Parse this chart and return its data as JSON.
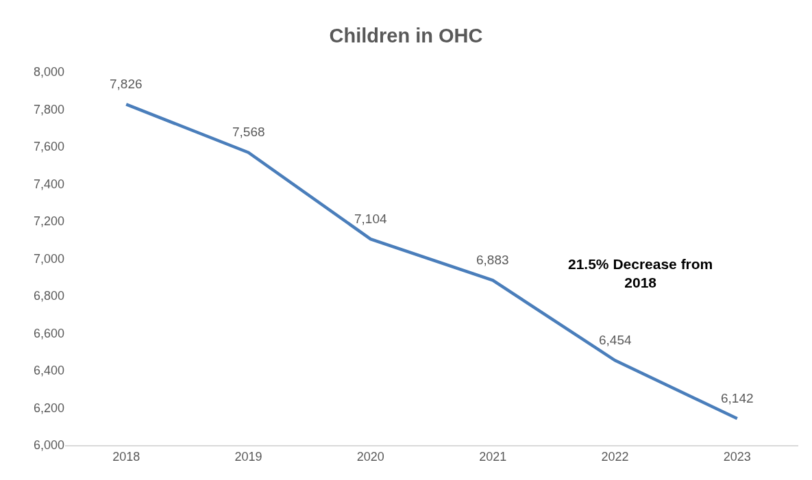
{
  "chart_data": {
    "type": "line",
    "title": "Children in OHC",
    "categories": [
      "2018",
      "2019",
      "2020",
      "2021",
      "2022",
      "2023"
    ],
    "series": [
      {
        "color": "#4a7ebb",
        "values": [
          7826,
          7568,
          7104,
          6883,
          6454,
          6142
        ],
        "value_labels": [
          "7,826",
          "7,568",
          "7,104",
          "6,883",
          "6,454",
          "6,142"
        ]
      }
    ],
    "ylim": [
      6000,
      8000
    ],
    "yticks": [
      {
        "value": 6000,
        "label": "6,000"
      },
      {
        "value": 6200,
        "label": "6,200"
      },
      {
        "value": 6400,
        "label": "6,400"
      },
      {
        "value": 6600,
        "label": "6,600"
      },
      {
        "value": 6800,
        "label": "6,800"
      },
      {
        "value": 7000,
        "label": "7,000"
      },
      {
        "value": 7200,
        "label": "7,200"
      },
      {
        "value": 7400,
        "label": "7,400"
      },
      {
        "value": 7600,
        "label": "7,600"
      },
      {
        "value": 7800,
        "label": "7,800"
      },
      {
        "value": 8000,
        "label": "8,000"
      }
    ],
    "grid": false,
    "marker": "none",
    "line_style": "solid",
    "annotations": [
      "21.5% Decrease from 2018"
    ]
  }
}
